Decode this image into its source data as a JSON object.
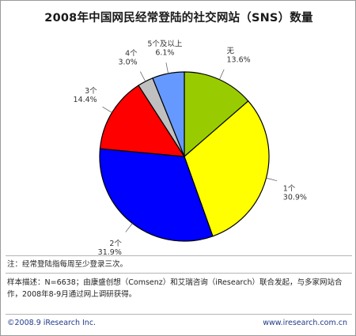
{
  "chart_data": {
    "type": "pie",
    "title": "2008年中国网民经常登陆的社交网站（SNS）数量",
    "slices": [
      {
        "label": "无",
        "value": 13.6,
        "value_text": "13.6%",
        "color": "#99cc00"
      },
      {
        "label": "1个",
        "value": 30.9,
        "value_text": "30.9%",
        "color": "#ffff00"
      },
      {
        "label": "2个",
        "value": 31.9,
        "value_text": "31.9%",
        "color": "#0000ff"
      },
      {
        "label": "3个",
        "value": 14.4,
        "value_text": "14.4%",
        "color": "#ff0000"
      },
      {
        "label": "4个",
        "value": 3.0,
        "value_text": "3.0%",
        "color": "#c0c0c0"
      },
      {
        "label": "5个及以上",
        "value": 6.1,
        "value_text": "6.1%",
        "color": "#6699ff"
      }
    ]
  },
  "notes": {
    "note": "注：经常登陆指每周至少登录三次。",
    "sample_line1": "样本描述：N=6638；由康盛创想（Comsenz）和艾瑞咨询（iResearch）联合发起，与多家网站合",
    "sample_line2": "作，2008年8-9月通过网上调研获得。"
  },
  "footer": {
    "copyright": "©2008.9 iResearch Inc.",
    "website": "www.iresearch.com.cn"
  }
}
